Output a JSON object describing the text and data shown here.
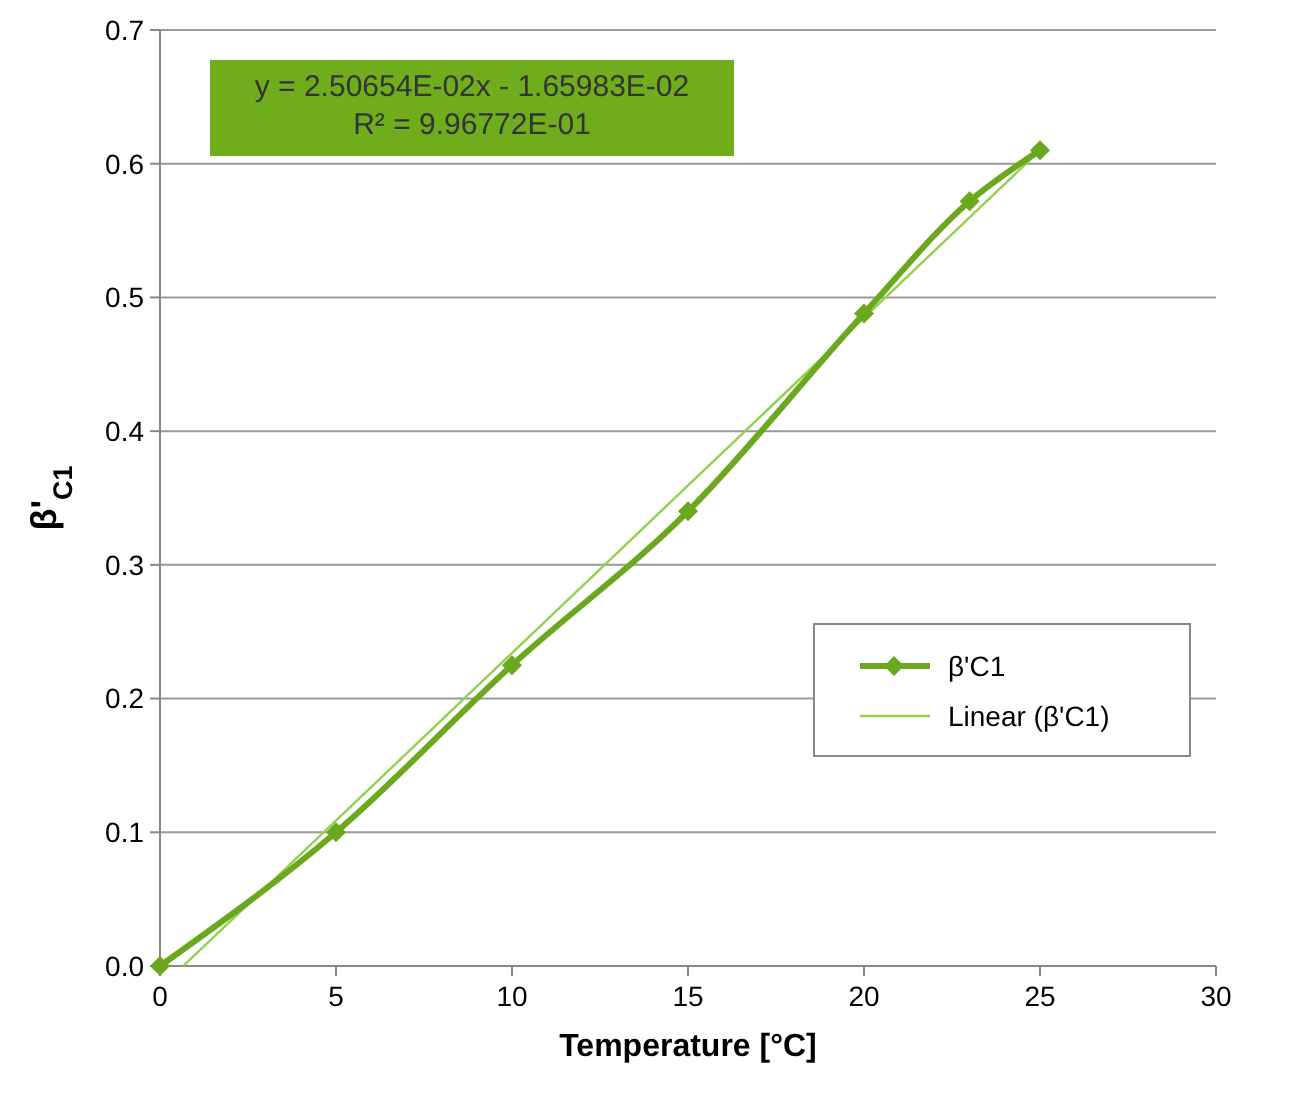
{
  "chart_data": {
    "type": "line",
    "xlabel": "Temperature [°C]",
    "ylabel": "β'$_{C1}$",
    "xlim": [
      0,
      30
    ],
    "xticks": [
      0,
      5,
      10,
      15,
      20,
      25,
      30
    ],
    "ylim": [
      0,
      0.7
    ],
    "yticks": [
      {
        "value": 0,
        "label": "0.0"
      },
      0.1,
      0.2,
      0.3,
      0.4,
      0.5,
      0.6,
      0.7
    ],
    "grid": "y",
    "legend": "right",
    "marker": "diamond",
    "annotations": [
      "y = 2.50654E-02x - 1.65983E-02",
      "R² = 9.96772E-01"
    ],
    "series": [
      {
        "name": "β'C1",
        "color": "#6aa81e",
        "x": [
          0,
          5,
          10,
          15,
          20,
          23,
          25
        ],
        "values": [
          0,
          0.1,
          0.225,
          0.34,
          0.488,
          0.572,
          0.61
        ]
      },
      {
        "name": "Linear (β'C1)",
        "color": "#92d050",
        "type": "line",
        "marker": "none",
        "x": [
          0.66,
          25
        ],
        "values": [
          0,
          0.61
        ]
      }
    ]
  }
}
